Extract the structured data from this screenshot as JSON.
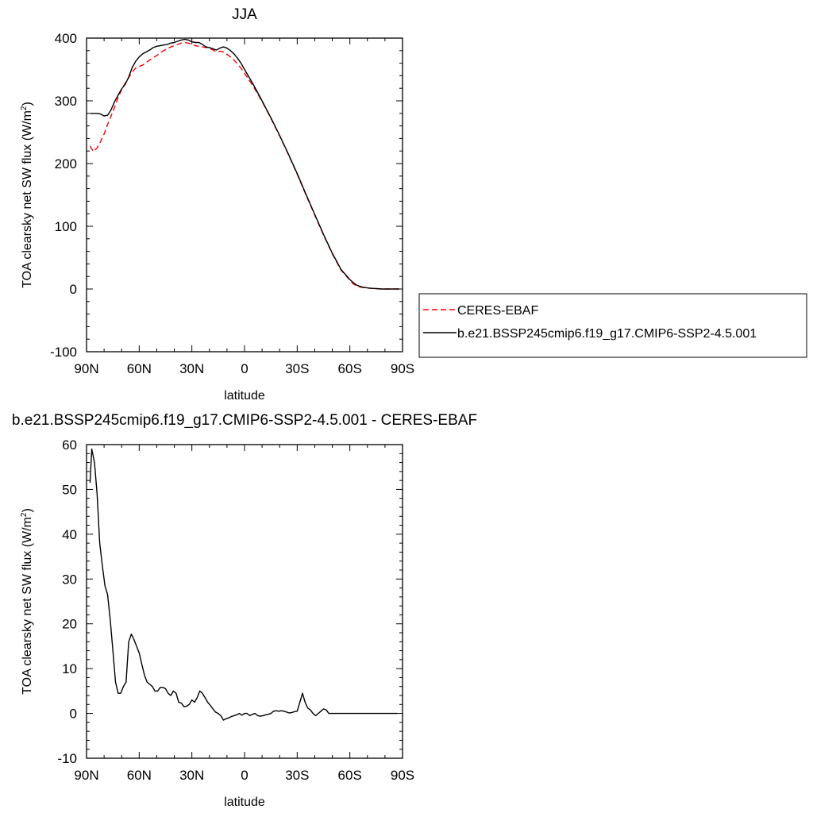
{
  "chart_data": [
    {
      "type": "line",
      "title": "JJA",
      "xlabel": "latitude",
      "ylabel": "TOA clearsky net SW flux (W/m",
      "ylabel_sup": "2",
      "ylabel_close": ")",
      "xlim": [
        90,
        -90
      ],
      "ylim": [
        -100,
        400
      ],
      "x_ticks": [
        90,
        60,
        30,
        0,
        -30,
        -60,
        -90
      ],
      "x_tick_labels": [
        "90N",
        "60N",
        "30N",
        "0",
        "30S",
        "60S",
        "90S"
      ],
      "y_ticks": [
        -100,
        0,
        100,
        200,
        300,
        400
      ],
      "y_tick_labels": [
        "-100",
        "0",
        "100",
        "200",
        "300",
        "400"
      ],
      "legend": {
        "placement": "right",
        "entries": [
          "CERES-EBAF",
          "b.e21.BSSP245cmip6.f19_g17.CMIP6-SSP2-4.5.001"
        ]
      },
      "series": [
        {
          "name": "CERES-EBAF",
          "style": "dashed",
          "color": "#ff0000",
          "x": [
            88,
            86,
            84,
            82,
            80,
            78,
            76,
            74,
            72,
            70,
            68,
            66,
            64,
            62,
            60,
            58,
            56,
            54,
            52,
            50,
            48,
            46,
            44,
            42,
            40,
            38,
            36,
            34,
            32,
            30,
            28,
            26,
            24,
            22,
            20,
            18,
            16,
            14,
            12,
            10,
            8,
            6,
            4,
            2,
            0,
            -5,
            -10,
            -15,
            -20,
            -25,
            -30,
            -35,
            -40,
            -45,
            -50,
            -55,
            -60,
            -62,
            -64,
            -66,
            -68,
            -70,
            -72,
            -75,
            -78,
            -81,
            -84,
            -88
          ],
          "y": [
            228,
            219,
            225,
            235,
            247,
            262,
            276,
            290,
            305,
            318,
            328,
            337,
            346,
            352,
            355,
            357,
            361,
            365,
            369,
            372,
            377,
            380,
            383,
            386,
            388,
            390,
            392,
            393,
            392,
            390,
            388,
            387,
            386,
            385,
            384,
            381,
            378,
            379,
            378,
            374,
            370,
            365,
            359,
            352,
            344,
            323,
            299,
            272,
            244,
            214,
            183,
            150,
            118,
            86,
            56,
            30,
            14,
            8,
            5,
            3,
            2,
            1.5,
            1,
            0.5,
            0,
            0,
            0,
            0
          ]
        },
        {
          "name": "b.e21.BSSP245cmip6.f19_g17.CMIP6-SSP2-4.5.001",
          "style": "solid",
          "color": "#000000",
          "x": [
            88,
            86,
            84,
            82,
            80,
            78,
            76,
            74,
            72,
            70,
            68,
            66,
            64,
            62,
            60,
            58,
            56,
            54,
            52,
            50,
            48,
            46,
            44,
            42,
            40,
            38,
            36,
            34,
            32,
            30,
            28,
            26,
            24,
            22,
            20,
            18,
            16,
            14,
            12,
            10,
            8,
            6,
            4,
            2,
            0,
            -5,
            -10,
            -15,
            -20,
            -25,
            -30,
            -35,
            -40,
            -45,
            -50,
            -55,
            -60,
            -62,
            -64,
            -66,
            -68,
            -70,
            -72,
            -75,
            -78,
            -81,
            -84,
            -88
          ],
          "y": [
            280,
            280,
            280,
            279,
            276,
            277,
            286,
            299,
            309,
            319,
            326,
            338,
            353,
            363,
            370,
            375,
            378,
            381,
            385,
            387,
            388,
            389,
            390,
            392,
            393,
            395,
            397,
            398,
            397,
            394,
            393,
            393,
            390,
            386,
            385,
            383,
            381,
            384,
            386,
            384,
            380,
            375,
            368,
            360,
            350,
            326,
            300,
            273,
            245,
            215,
            184,
            151,
            119,
            87,
            57,
            31,
            15,
            10,
            6,
            4,
            2.5,
            1.8,
            1.2,
            0.6,
            0,
            0,
            0,
            0
          ]
        }
      ]
    },
    {
      "type": "line",
      "title": "b.e21.BSSP245cmip6.f19_g17.CMIP6-SSP2-4.5.001 - CERES-EBAF",
      "xlabel": "latitude",
      "ylabel": "TOA clearsky net SW flux (W/m",
      "ylabel_sup": "2",
      "ylabel_close": ")",
      "xlim": [
        90,
        -90
      ],
      "ylim": [
        -10,
        60
      ],
      "x_ticks": [
        90,
        60,
        30,
        0,
        -30,
        -60,
        -90
      ],
      "x_tick_labels": [
        "90N",
        "60N",
        "30N",
        "0",
        "30S",
        "60S",
        "90S"
      ],
      "y_ticks": [
        -10,
        0,
        10,
        20,
        30,
        40,
        50,
        60
      ],
      "y_tick_labels": [
        "-10",
        "0",
        "10",
        "20",
        "30",
        "40",
        "50",
        "60"
      ],
      "series": [
        {
          "style": "solid",
          "color": "#000000",
          "x": [
            88,
            87,
            85.5,
            84,
            82.5,
            81,
            79.5,
            78,
            76.5,
            75,
            73.5,
            72,
            70.5,
            69,
            67.5,
            66,
            64.5,
            63,
            61.5,
            60,
            58.5,
            57,
            55.5,
            54,
            52.5,
            51,
            49.5,
            48,
            46.5,
            45,
            43.5,
            42,
            40.5,
            39,
            37.5,
            36,
            34.5,
            33,
            31.5,
            30,
            28.5,
            27,
            25.5,
            24,
            22.5,
            21,
            19.5,
            18,
            16.5,
            15,
            13.5,
            12,
            10.5,
            9,
            7.5,
            6,
            4.5,
            3,
            1.5,
            0,
            -1.5,
            -3,
            -4.5,
            -6,
            -7.5,
            -9,
            -10.5,
            -12,
            -13.5,
            -15,
            -16.5,
            -18,
            -19.5,
            -21,
            -22.5,
            -24,
            -25.5,
            -27,
            -28.5,
            -30,
            -31.5,
            -33,
            -34.5,
            -36,
            -37.5,
            -39,
            -40.5,
            -42,
            -43.5,
            -45,
            -46.5,
            -48,
            -49.5,
            -51,
            -52.5,
            -54,
            -55.5,
            -57,
            -58.5,
            -60,
            -61.5,
            -63,
            -64.5,
            -66,
            -67.5,
            -69,
            -70.5,
            -72,
            -73.5,
            -75,
            -76.5,
            -78,
            -79.5,
            -81,
            -82.5,
            -84,
            -85.5,
            -87
          ],
          "y": [
            51.5,
            59,
            56,
            49,
            38,
            33,
            28.5,
            26.5,
            21,
            14,
            7,
            4.5,
            4.5,
            6,
            7,
            16,
            17.7,
            16.5,
            15,
            13.5,
            11,
            8.5,
            7,
            6.5,
            6,
            5,
            5,
            5.8,
            5.8,
            5.5,
            4.5,
            4,
            5,
            4.5,
            2.5,
            2.3,
            1.5,
            1.6,
            2,
            3,
            2.5,
            3.5,
            5,
            4.5,
            3.5,
            2.5,
            1.8,
            1,
            0.3,
            0,
            -0.5,
            -1.5,
            -1.2,
            -1,
            -0.7,
            -0.5,
            -0.3,
            0,
            -0.4,
            0,
            0,
            -0.5,
            -0.2,
            0,
            -0.5,
            -0.6,
            -0.5,
            -0.3,
            -0.2,
            0,
            0.5,
            0.6,
            0.5,
            0.6,
            0.5,
            0.3,
            0.1,
            0.2,
            0.4,
            0.5,
            2.5,
            4.5,
            2.5,
            1.2,
            0.8,
            0,
            -0.5,
            0,
            0.5,
            1,
            0.8,
            0,
            0,
            0,
            0,
            0,
            0,
            0,
            0,
            0,
            0,
            0,
            0,
            0,
            0,
            0,
            0,
            0,
            0,
            0,
            0,
            0,
            0,
            0,
            0,
            0,
            0,
            0
          ]
        }
      ]
    }
  ]
}
